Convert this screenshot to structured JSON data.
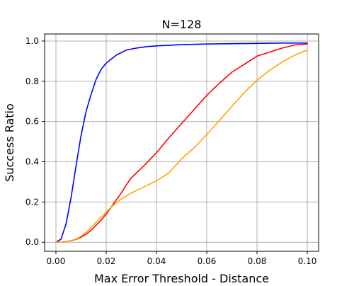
{
  "chart_data": {
    "type": "line",
    "title": "N=128",
    "xlabel": "Max Error Threshold - Distance",
    "ylabel": "Success Ratio",
    "xlim": [
      -0.0045,
      0.1045
    ],
    "ylim": [
      -0.045,
      1.035
    ],
    "grid": true,
    "x_ticks": [
      0.0,
      0.02,
      0.04,
      0.06,
      0.08,
      0.1
    ],
    "x_tick_labels": [
      "0.00",
      "0.02",
      "0.04",
      "0.06",
      "0.08",
      "0.10"
    ],
    "y_ticks": [
      0.0,
      0.2,
      0.4,
      0.6,
      0.8,
      1.0
    ],
    "y_tick_labels": [
      "0.0",
      "0.2",
      "0.4",
      "0.6",
      "0.8",
      "1.0"
    ],
    "series": [
      {
        "color": "#0000ff",
        "x": [
          0.0,
          0.002,
          0.004,
          0.006,
          0.008,
          0.01,
          0.012,
          0.014,
          0.016,
          0.018,
          0.02,
          0.024,
          0.028,
          0.032,
          0.036,
          0.04,
          0.05,
          0.06,
          0.07,
          0.08,
          0.09,
          0.1
        ],
        "y": [
          0.0,
          0.015,
          0.09,
          0.22,
          0.38,
          0.53,
          0.65,
          0.735,
          0.81,
          0.86,
          0.89,
          0.93,
          0.955,
          0.965,
          0.972,
          0.976,
          0.982,
          0.985,
          0.987,
          0.988,
          0.99,
          0.99
        ]
      },
      {
        "color": "#ff0000",
        "x": [
          0.0,
          0.002,
          0.004,
          0.006,
          0.008,
          0.01,
          0.012,
          0.014,
          0.016,
          0.018,
          0.02,
          0.022,
          0.024,
          0.026,
          0.028,
          0.03,
          0.035,
          0.04,
          0.045,
          0.05,
          0.055,
          0.06,
          0.065,
          0.07,
          0.075,
          0.08,
          0.085,
          0.09,
          0.095,
          0.1
        ],
        "y": [
          0.0,
          0.0,
          0.003,
          0.008,
          0.014,
          0.025,
          0.04,
          0.06,
          0.085,
          0.11,
          0.14,
          0.175,
          0.21,
          0.245,
          0.285,
          0.32,
          0.38,
          0.445,
          0.52,
          0.59,
          0.66,
          0.73,
          0.79,
          0.845,
          0.885,
          0.925,
          0.945,
          0.965,
          0.98,
          0.985
        ]
      },
      {
        "color": "#ffa500",
        "x": [
          0.0,
          0.002,
          0.004,
          0.006,
          0.008,
          0.01,
          0.012,
          0.014,
          0.016,
          0.018,
          0.02,
          0.022,
          0.024,
          0.026,
          0.028,
          0.03,
          0.035,
          0.04,
          0.045,
          0.05,
          0.055,
          0.06,
          0.065,
          0.07,
          0.075,
          0.08,
          0.085,
          0.09,
          0.095,
          0.1
        ],
        "y": [
          0.0,
          0.0,
          0.003,
          0.008,
          0.016,
          0.03,
          0.05,
          0.075,
          0.1,
          0.125,
          0.15,
          0.175,
          0.195,
          0.215,
          0.23,
          0.245,
          0.275,
          0.305,
          0.345,
          0.415,
          0.47,
          0.535,
          0.605,
          0.675,
          0.745,
          0.805,
          0.855,
          0.895,
          0.93,
          0.955
        ]
      }
    ]
  }
}
